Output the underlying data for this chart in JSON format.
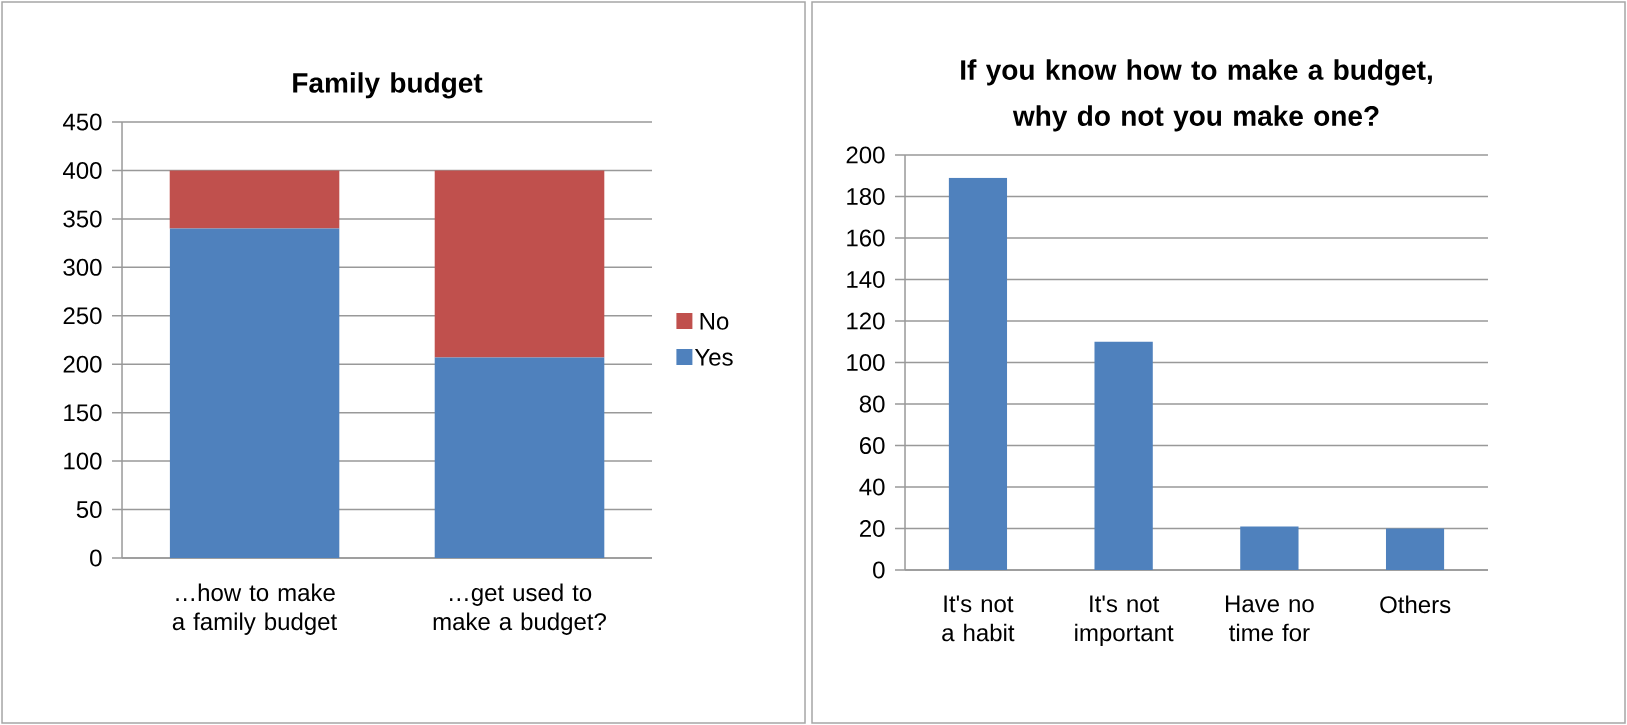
{
  "chart_data": [
    {
      "type": "bar",
      "title": "Family budget",
      "categories": [
        "…how to make  a family budget",
        "…get used to make a budget?"
      ],
      "stacked": true,
      "series": [
        {
          "name": "Yes",
          "color": "#4f81bd",
          "values": [
            340,
            207
          ]
        },
        {
          "name": "No",
          "color": "#c0504d",
          "values": [
            60,
            193
          ]
        }
      ],
      "ylim": [
        0,
        450
      ],
      "yticks": [
        0,
        50,
        100,
        150,
        200,
        250,
        300,
        350,
        400,
        450
      ],
      "grid": "y",
      "legend": "right"
    },
    {
      "type": "bar",
      "title": "If you know how to make a  budget, why do not you make one?",
      "categories": [
        "It's not a habit",
        "It's not important",
        "Have no time for",
        "Others"
      ],
      "values": [
        189,
        110,
        21,
        20
      ],
      "color": "#4f81bd",
      "ylim": [
        0,
        200
      ],
      "yticks": [
        0,
        20,
        40,
        60,
        80,
        100,
        120,
        140,
        160,
        180,
        200
      ],
      "grid": "y"
    }
  ]
}
